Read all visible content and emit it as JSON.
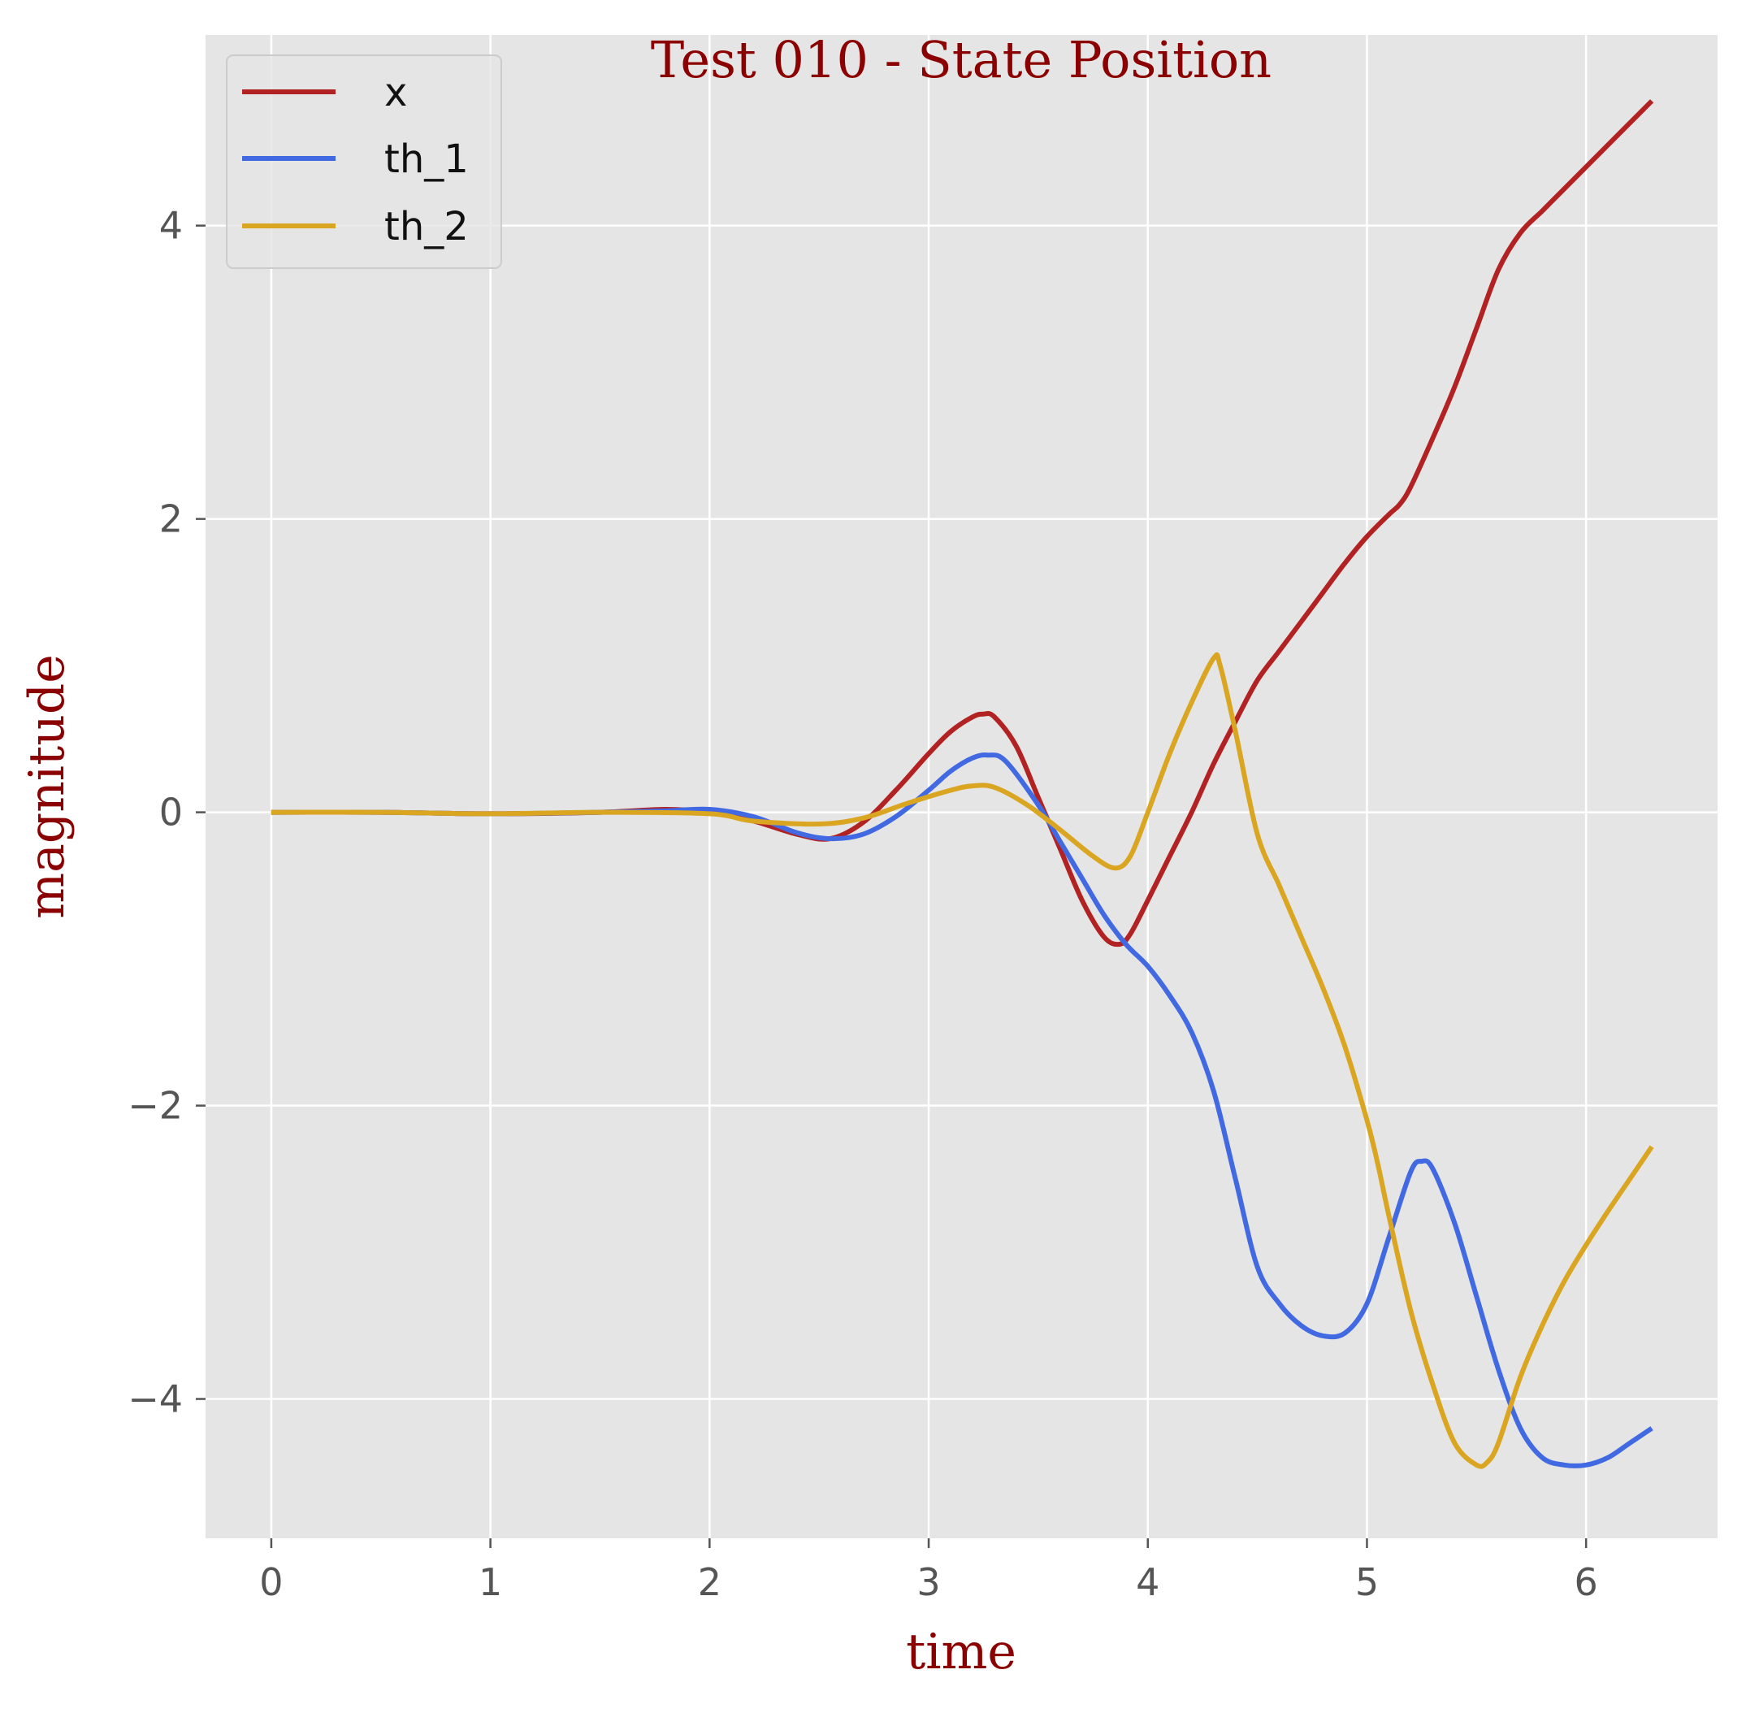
{
  "chart_data": {
    "type": "line",
    "title": "Test 010 - State Position",
    "xlabel": "time",
    "ylabel": "magnitude",
    "xlim": [
      -0.3,
      6.6
    ],
    "ylim": [
      -4.95,
      5.3
    ],
    "xticks": [
      0,
      1,
      2,
      3,
      4,
      5,
      6
    ],
    "xtick_labels": [
      "0",
      "1",
      "2",
      "3",
      "4",
      "5",
      "6"
    ],
    "yticks": [
      -4,
      -2,
      0,
      2,
      4
    ],
    "ytick_labels": [
      "−4",
      "−2",
      "0",
      "2",
      "4"
    ],
    "grid": true,
    "legend_position": "top-left",
    "background": "#e5e5e5",
    "series": [
      {
        "name": "x",
        "color": "#b22222",
        "x": [
          0,
          0.5,
          1.0,
          1.5,
          1.8,
          2.0,
          2.2,
          2.4,
          2.55,
          2.7,
          2.85,
          3.0,
          3.1,
          3.2,
          3.25,
          3.3,
          3.4,
          3.5,
          3.6,
          3.7,
          3.8,
          3.87,
          3.92,
          4.0,
          4.1,
          4.2,
          4.3,
          4.4,
          4.5,
          4.6,
          4.7,
          4.8,
          4.9,
          5.0,
          5.1,
          5.15,
          5.2,
          5.3,
          5.4,
          5.5,
          5.6,
          5.7,
          5.8,
          5.9,
          6.0,
          6.1,
          6.2,
          6.3
        ],
        "values": [
          0,
          0,
          -0.01,
          0.0,
          0.02,
          0.0,
          -0.06,
          -0.15,
          -0.18,
          -0.07,
          0.15,
          0.4,
          0.55,
          0.65,
          0.67,
          0.65,
          0.45,
          0.1,
          -0.25,
          -0.6,
          -0.85,
          -0.9,
          -0.83,
          -0.6,
          -0.3,
          0.0,
          0.33,
          0.62,
          0.9,
          1.1,
          1.3,
          1.5,
          1.7,
          1.88,
          2.03,
          2.1,
          2.22,
          2.55,
          2.9,
          3.3,
          3.7,
          3.95,
          4.1,
          4.25,
          4.4,
          4.55,
          4.7,
          4.85
        ]
      },
      {
        "name": "th_1",
        "color": "#4169e1",
        "x": [
          0,
          0.5,
          1.0,
          1.5,
          1.8,
          2.0,
          2.2,
          2.4,
          2.55,
          2.7,
          2.85,
          3.0,
          3.1,
          3.2,
          3.27,
          3.35,
          3.5,
          3.6,
          3.7,
          3.8,
          3.9,
          4.0,
          4.1,
          4.2,
          4.3,
          4.4,
          4.5,
          4.6,
          4.7,
          4.8,
          4.9,
          5.0,
          5.1,
          5.2,
          5.25,
          5.3,
          5.4,
          5.5,
          5.6,
          5.7,
          5.8,
          5.9,
          6.0,
          6.1,
          6.2,
          6.3
        ],
        "values": [
          0,
          0,
          -0.01,
          0.0,
          0.01,
          0.02,
          -0.03,
          -0.14,
          -0.18,
          -0.15,
          -0.03,
          0.15,
          0.28,
          0.37,
          0.39,
          0.35,
          0.05,
          -0.2,
          -0.45,
          -0.7,
          -0.9,
          -1.05,
          -1.25,
          -1.5,
          -1.9,
          -2.5,
          -3.1,
          -3.35,
          -3.5,
          -3.57,
          -3.55,
          -3.35,
          -2.9,
          -2.45,
          -2.38,
          -2.43,
          -2.8,
          -3.3,
          -3.8,
          -4.2,
          -4.4,
          -4.45,
          -4.45,
          -4.4,
          -4.3,
          -4.2
        ]
      },
      {
        "name": "th_2",
        "color": "#daa520",
        "x": [
          0,
          0.5,
          1.0,
          1.5,
          2.0,
          2.2,
          2.5,
          2.7,
          2.9,
          3.1,
          3.2,
          3.3,
          3.45,
          3.6,
          3.75,
          3.85,
          3.92,
          4.0,
          4.1,
          4.2,
          4.3,
          4.33,
          4.4,
          4.5,
          4.6,
          4.7,
          4.8,
          4.9,
          5.0,
          5.05,
          5.1,
          5.2,
          5.3,
          5.4,
          5.5,
          5.55,
          5.6,
          5.7,
          5.8,
          5.9,
          6.0,
          6.1,
          6.2,
          6.3
        ],
        "values": [
          0,
          0,
          -0.01,
          0.0,
          -0.01,
          -0.06,
          -0.08,
          -0.04,
          0.06,
          0.15,
          0.18,
          0.17,
          0.05,
          -0.12,
          -0.3,
          -0.38,
          -0.3,
          0.0,
          0.4,
          0.75,
          1.05,
          1.0,
          0.55,
          -0.15,
          -0.5,
          -0.85,
          -1.2,
          -1.6,
          -2.1,
          -2.4,
          -2.75,
          -3.4,
          -3.9,
          -4.3,
          -4.45,
          -4.43,
          -4.3,
          -3.85,
          -3.5,
          -3.2,
          -2.95,
          -2.72,
          -2.5,
          -2.28
        ]
      }
    ]
  }
}
